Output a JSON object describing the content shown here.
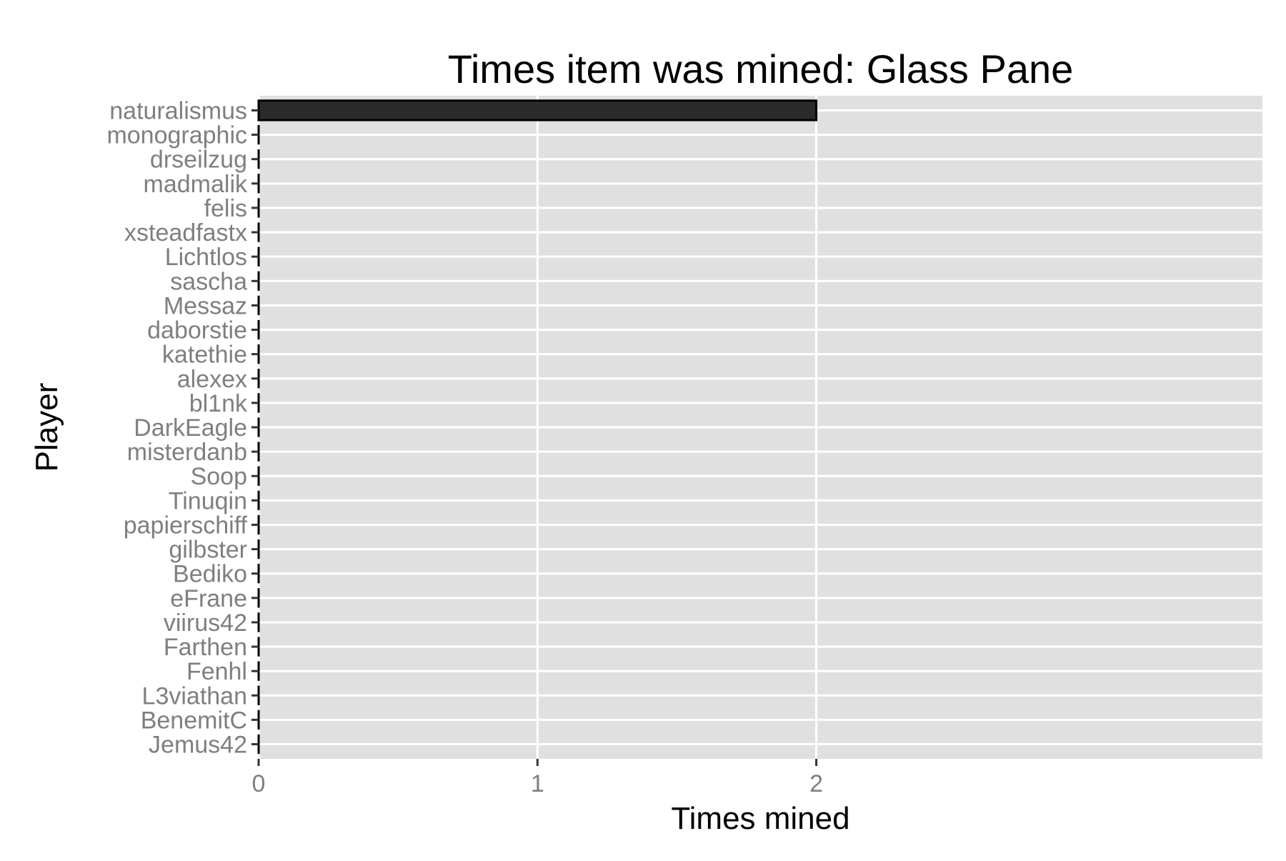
{
  "chart_data": {
    "type": "bar",
    "orientation": "horizontal",
    "title": "Times item was mined: Glass Pane",
    "xlabel": "Times mined",
    "ylabel": "Player",
    "categories": [
      "naturalismus",
      "monographic",
      "drseilzug",
      "madmalik",
      "felis",
      "xsteadfastx",
      "Lichtlos",
      "sascha",
      "Messaz",
      "daborstie",
      "katethie",
      "alexex",
      "bl1nk",
      "DarkEagle",
      "misterdanb",
      "Soop",
      "Tinuqin",
      "papierschiff",
      "gilbster",
      "Bediko",
      "eFrane",
      "viirus42",
      "Farthen",
      "Fenhl",
      "L3viathan",
      "BenemitC",
      "Jemus42"
    ],
    "values": [
      2,
      0,
      0,
      0,
      0,
      0,
      0,
      0,
      0,
      0,
      0,
      0,
      0,
      0,
      0,
      0,
      0,
      0,
      0,
      0,
      0,
      0,
      0,
      0,
      0,
      0,
      0
    ],
    "xticks": [
      "0",
      "1",
      "2"
    ],
    "xlim": [
      0,
      3.6
    ],
    "grid": true,
    "legend": "none",
    "colors": {
      "panel": "#e0e0e0",
      "grid": "#ffffff",
      "bar_fill": "#2b2b2b",
      "bar_stroke": "#000000",
      "tick": "#333333"
    }
  }
}
